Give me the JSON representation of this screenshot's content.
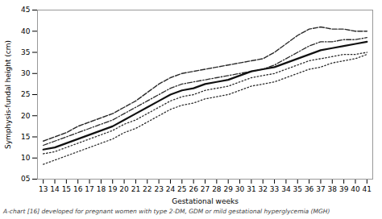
{
  "chart_data": {
    "type": "line",
    "x": [
      13,
      14,
      15,
      16,
      17,
      18,
      19,
      20,
      21,
      22,
      23,
      24,
      25,
      26,
      27,
      28,
      29,
      30,
      31,
      32,
      33,
      34,
      35,
      36,
      37,
      38,
      39,
      40,
      41
    ],
    "series": [
      {
        "color": "#2a2a2a",
        "line_style": "dashed",
        "values": [
          14.0,
          15.0,
          16.0,
          17.5,
          18.5,
          19.5,
          20.5,
          22.0,
          23.5,
          25.5,
          27.5,
          29.0,
          30.0,
          30.5,
          31.0,
          31.5,
          32.0,
          32.5,
          33.0,
          33.5,
          35.0,
          37.0,
          39.0,
          40.5,
          41.0,
          40.5,
          40.5,
          40.0,
          40.0
        ]
      },
      {
        "color": "#2a2a2a",
        "line_style": "dashdot",
        "values": [
          13.0,
          14.0,
          15.0,
          16.0,
          17.0,
          18.0,
          19.0,
          20.5,
          22.0,
          23.5,
          25.0,
          26.5,
          27.5,
          28.0,
          28.5,
          29.0,
          29.5,
          30.0,
          30.5,
          31.0,
          32.0,
          33.5,
          35.0,
          36.5,
          37.5,
          37.5,
          38.0,
          38.0,
          38.5
        ]
      },
      {
        "color": "#111111",
        "line_style": "solid",
        "values": [
          12.0,
          12.5,
          13.5,
          14.5,
          15.5,
          16.5,
          17.5,
          19.0,
          20.5,
          22.0,
          23.5,
          25.0,
          26.0,
          26.5,
          27.5,
          28.0,
          28.5,
          29.5,
          30.5,
          31.0,
          31.5,
          32.5,
          33.5,
          34.5,
          35.5,
          36.0,
          36.5,
          37.0,
          37.5
        ]
      },
      {
        "color": "#2a2a2a",
        "line_style": "dotted",
        "values": [
          11.0,
          11.5,
          12.5,
          13.5,
          14.5,
          15.5,
          16.5,
          18.0,
          19.0,
          20.5,
          22.0,
          23.5,
          24.5,
          25.0,
          26.0,
          26.5,
          27.0,
          28.0,
          29.0,
          29.5,
          30.0,
          31.0,
          32.0,
          33.0,
          33.5,
          34.0,
          34.5,
          34.5,
          35.0
        ]
      },
      {
        "color": "#2a2a2a",
        "line_style": "dotted",
        "values": [
          8.5,
          9.5,
          10.5,
          11.5,
          12.5,
          13.5,
          14.5,
          16.0,
          17.0,
          18.5,
          20.0,
          21.5,
          22.5,
          23.0,
          24.0,
          24.5,
          25.0,
          26.0,
          27.0,
          27.5,
          28.0,
          29.0,
          30.0,
          31.0,
          31.5,
          32.5,
          33.0,
          33.5,
          34.5
        ]
      }
    ],
    "xlabel": "Gestational weeks",
    "ylabel": "Symphysis-fundal height (cm)",
    "xlim": [
      12.5,
      41.5
    ],
    "xticks": [
      13,
      14,
      15,
      16,
      17,
      18,
      19,
      20,
      21,
      22,
      23,
      24,
      25,
      26,
      27,
      28,
      29,
      30,
      31,
      32,
      33,
      34,
      35,
      36,
      37,
      38,
      39,
      40,
      41
    ],
    "ylim": [
      5,
      45
    ],
    "yticks": [
      {
        "value": 5,
        "label": "05"
      },
      10,
      15,
      20,
      25,
      30,
      35,
      40,
      45
    ],
    "grid": false,
    "caption": "A-chart [16] developed for pregnant women with type 2-DM, GDM or mild gestational hyperglycemia (MGH)"
  }
}
